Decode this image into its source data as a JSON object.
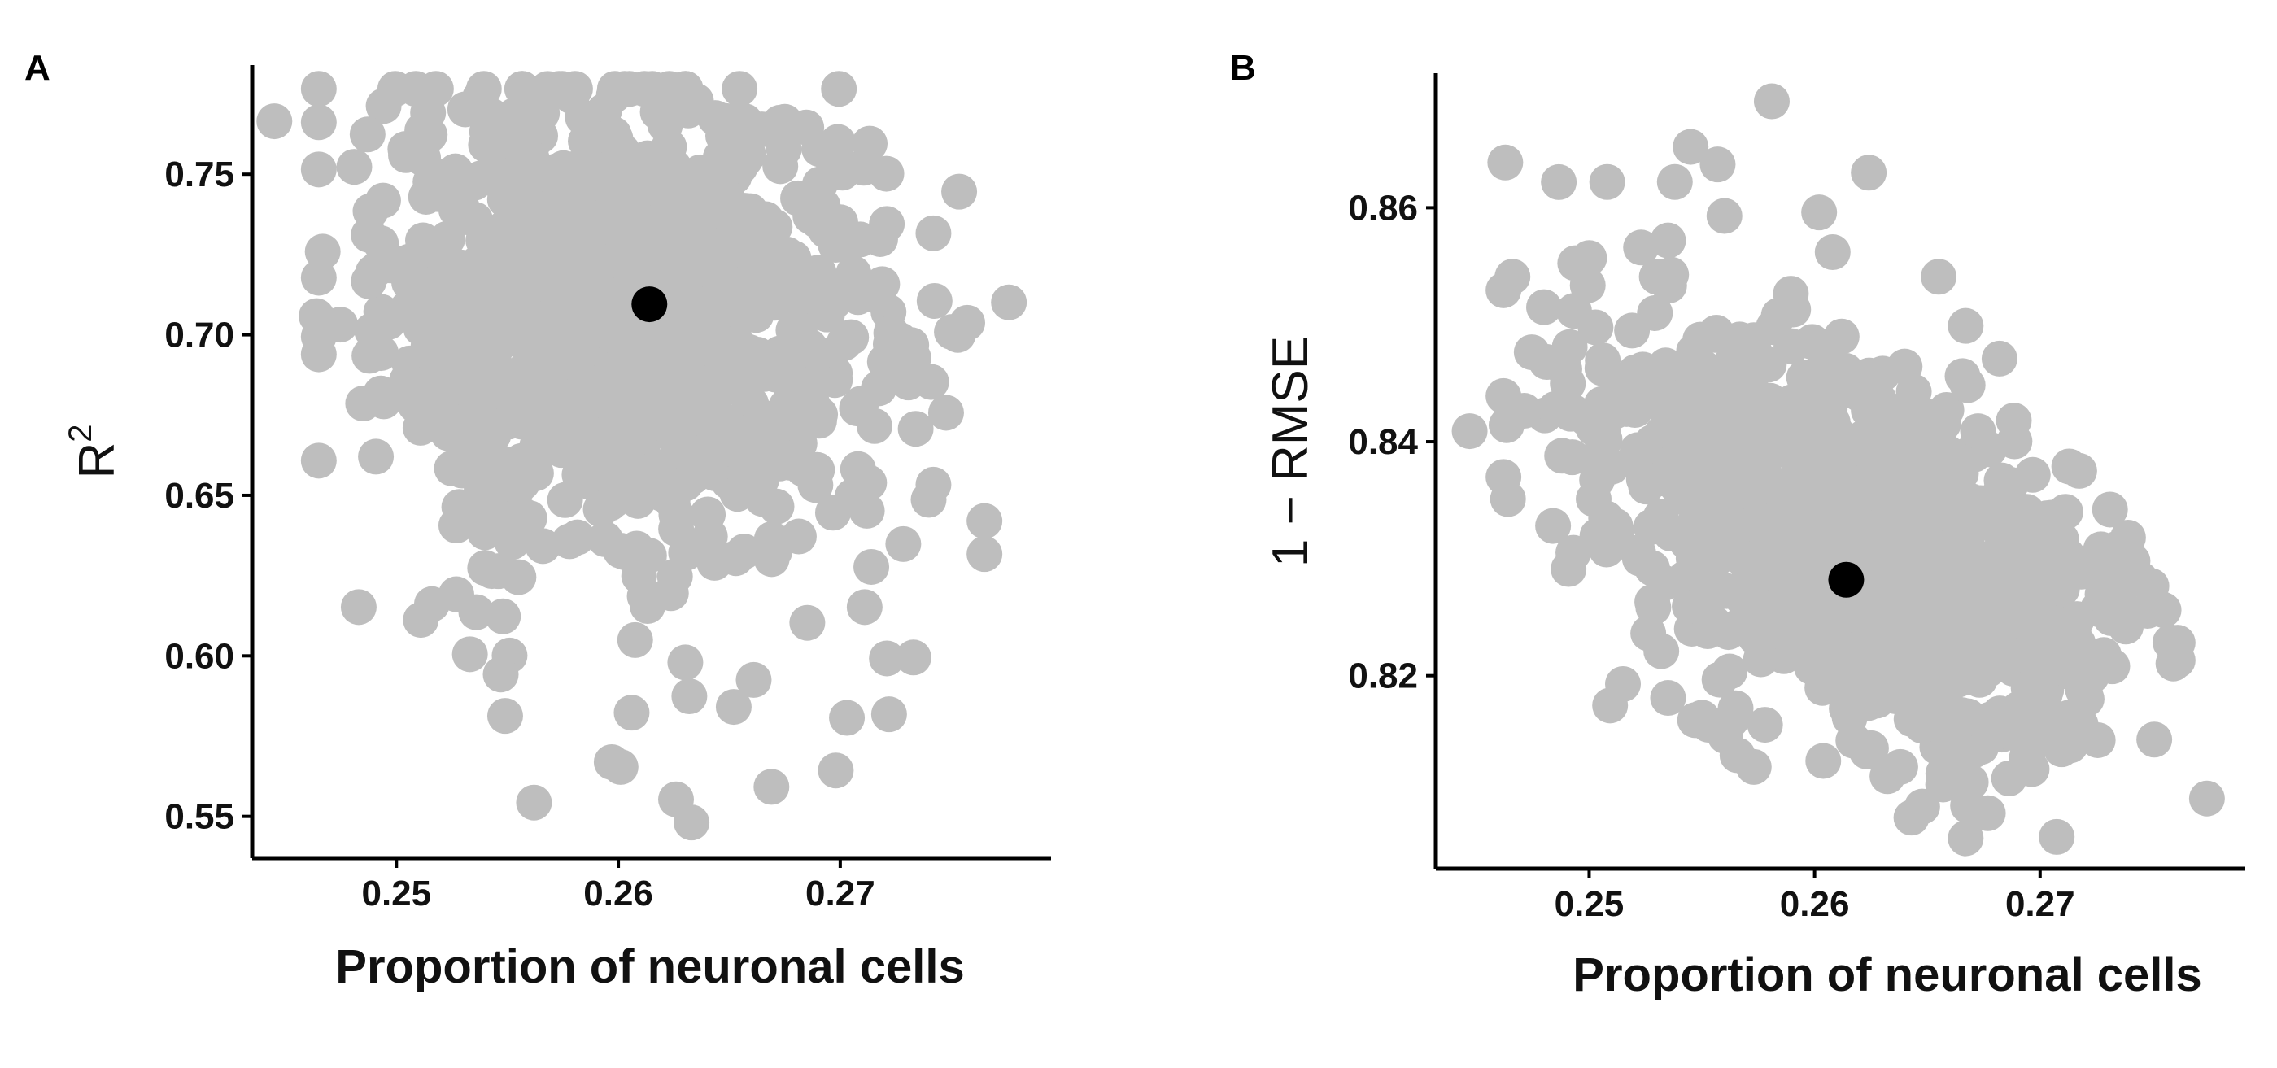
{
  "panels": [
    {
      "letter": "A",
      "xlabel": "Proportion of neuronal cells",
      "ylabel_base": "R",
      "ylabel_sup": "2",
      "x_ticks": [
        0.25,
        0.26,
        0.27
      ],
      "x_tick_labels": [
        "0.25",
        "0.26",
        "0.27"
      ],
      "y_ticks": [
        0.55,
        0.6,
        0.65,
        0.7,
        0.75
      ],
      "y_tick_labels": [
        "0.55",
        "0.60",
        "0.65",
        "0.70",
        "0.75"
      ]
    },
    {
      "letter": "B",
      "xlabel": "Proportion of neuronal cells",
      "ylabel": "1 − RMSE",
      "x_ticks": [
        0.25,
        0.26,
        0.27
      ],
      "x_tick_labels": [
        "0.25",
        "0.26",
        "0.27"
      ],
      "y_ticks": [
        0.82,
        0.84,
        0.86
      ],
      "y_tick_labels": [
        "0.82",
        "0.84",
        "0.86"
      ]
    }
  ],
  "colors": {
    "points": "#bebebe",
    "highlight": "#000000",
    "axis": "#000000"
  },
  "chart_data": [
    {
      "type": "scatter",
      "title": "",
      "xlabel": "Proportion of neuronal cells",
      "ylabel": "R^2",
      "xlim": [
        0.2435,
        0.2795
      ],
      "ylim": [
        0.537,
        0.784
      ],
      "grid": false,
      "highlight_point": {
        "x": 0.2614,
        "y": 0.7095
      },
      "points": [
        [
          0.2445,
          0.7665
        ],
        [
          0.2465,
          0.7662
        ],
        [
          0.2481,
          0.7523
        ],
        [
          0.2487,
          0.7624
        ],
        [
          0.2494,
          0.7418
        ],
        [
          0.2493,
          0.7285
        ],
        [
          0.2497,
          0.7231
        ],
        [
          0.2505,
          0.7082
        ],
        [
          0.2493,
          0.6943
        ],
        [
          0.2489,
          0.7013
        ],
        [
          0.2464,
          0.7058
        ],
        [
          0.2485,
          0.6786
        ],
        [
          0.2483,
          0.6152
        ],
        [
          0.2511,
          0.6112
        ],
        [
          0.2516,
          0.6161
        ],
        [
          0.2527,
          0.6192
        ],
        [
          0.2536,
          0.6136
        ],
        [
          0.2548,
          0.6123
        ],
        [
          0.2551,
          0.6001
        ],
        [
          0.2547,
          0.5942
        ],
        [
          0.2549,
          0.5813
        ],
        [
          0.2562,
          0.5543
        ],
        [
          0.2512,
          0.7551
        ],
        [
          0.2515,
          0.7623
        ],
        [
          0.2531,
          0.7702
        ],
        [
          0.2538,
          0.7712
        ],
        [
          0.2553,
          0.7682
        ],
        [
          0.2519,
          0.7438
        ],
        [
          0.2527,
          0.7389
        ],
        [
          0.2523,
          0.7299
        ],
        [
          0.2513,
          0.7155
        ],
        [
          0.2518,
          0.6932
        ],
        [
          0.2513,
          0.6845
        ],
        [
          0.2525,
          0.6706
        ],
        [
          0.2525,
          0.6584
        ],
        [
          0.2527,
          0.6406
        ],
        [
          0.2541,
          0.6452
        ],
        [
          0.2543,
          0.6561
        ],
        [
          0.2543,
          0.6264
        ],
        [
          0.2555,
          0.6245
        ],
        [
          0.2566,
          0.6342
        ],
        [
          0.2578,
          0.6357
        ],
        [
          0.2597,
          0.5669
        ],
        [
          0.2601,
          0.5654
        ],
        [
          0.2606,
          0.5823
        ],
        [
          0.2626,
          0.5553
        ],
        [
          0.2633,
          0.5481
        ],
        [
          0.2632,
          0.5874
        ],
        [
          0.2652,
          0.5841
        ],
        [
          0.2661,
          0.5925
        ],
        [
          0.2669,
          0.5592
        ],
        [
          0.2698,
          0.5643
        ],
        [
          0.2703,
          0.5807
        ],
        [
          0.2722,
          0.5818
        ],
        [
          0.2721,
          0.5992
        ],
        [
          0.2733,
          0.5995
        ],
        [
          0.2711,
          0.6152
        ],
        [
          0.2714,
          0.6277
        ],
        [
          0.2712,
          0.6452
        ],
        [
          0.2713,
          0.6539
        ],
        [
          0.2742,
          0.6533
        ],
        [
          0.2734,
          0.6707
        ],
        [
          0.2741,
          0.6853
        ],
        [
          0.2733,
          0.6928
        ],
        [
          0.2727,
          0.6983
        ],
        [
          0.2723,
          0.7005
        ],
        [
          0.2732,
          0.6968
        ],
        [
          0.2742,
          0.7316
        ],
        [
          0.2721,
          0.7345
        ],
        [
          0.2718,
          0.7298
        ],
        [
          0.2706,
          0.7191
        ],
        [
          0.2703,
          0.7285
        ],
        [
          0.2701,
          0.7505
        ],
        [
          0.2776,
          0.7101
        ],
        [
          0.2579,
          0.7743
        ],
        [
          0.2598,
          0.7746
        ],
        [
          0.2635,
          0.7728
        ],
        [
          0.2657,
          0.7665
        ],
        [
          0.2673,
          0.7525
        ],
        [
          0.2681,
          0.7425
        ],
        [
          0.2614,
          0.7095
        ]
      ],
      "cloud_fill": {
        "note": "dense overlapping cluster of points",
        "center": [
          0.2605,
          0.705
        ],
        "x_spread": 0.0055,
        "y_spread": 0.035,
        "count": 900
      }
    },
    {
      "type": "scatter",
      "title": "",
      "xlabel": "Proportion of neuronal cells",
      "ylabel": "1 − RMSE",
      "xlim": [
        0.2432,
        0.2791
      ],
      "ylim": [
        0.8035,
        0.8715
      ],
      "grid": false,
      "highlight_point": {
        "x": 0.2614,
        "y": 0.8282
      },
      "points": [
        [
          0.2447,
          0.8409
        ],
        [
          0.2464,
          0.8351
        ],
        [
          0.2466,
          0.8541
        ],
        [
          0.248,
          0.8515
        ],
        [
          0.2485,
          0.8428
        ],
        [
          0.2488,
          0.8388
        ],
        [
          0.2489,
          0.8462
        ],
        [
          0.2493,
          0.8305
        ],
        [
          0.2484,
          0.8328
        ],
        [
          0.25,
          0.8557
        ],
        [
          0.2508,
          0.8622
        ],
        [
          0.2502,
          0.8351
        ],
        [
          0.2505,
          0.8428
        ],
        [
          0.2513,
          0.8445
        ],
        [
          0.2519,
          0.8495
        ],
        [
          0.2523,
          0.8566
        ],
        [
          0.253,
          0.8541
        ],
        [
          0.2538,
          0.8622
        ],
        [
          0.2535,
          0.8572
        ],
        [
          0.2545,
          0.8652
        ],
        [
          0.2557,
          0.8637
        ],
        [
          0.256,
          0.8593
        ],
        [
          0.2581,
          0.8691
        ],
        [
          0.2602,
          0.8596
        ],
        [
          0.2608,
          0.8562
        ],
        [
          0.2624,
          0.863
        ],
        [
          0.2655,
          0.8541
        ],
        [
          0.2667,
          0.8499
        ],
        [
          0.2682,
          0.8471
        ],
        [
          0.2528,
          0.8263
        ],
        [
          0.2532,
          0.8221
        ],
        [
          0.2535,
          0.8181
        ],
        [
          0.2547,
          0.8162
        ],
        [
          0.2553,
          0.8158
        ],
        [
          0.2563,
          0.8162
        ],
        [
          0.2573,
          0.8122
        ],
        [
          0.2578,
          0.8158
        ],
        [
          0.2625,
          0.8138
        ],
        [
          0.2638,
          0.8122
        ],
        [
          0.2657,
          0.8107
        ],
        [
          0.2666,
          0.8135
        ],
        [
          0.2667,
          0.8061
        ],
        [
          0.2686,
          0.8152
        ],
        [
          0.2694,
          0.8129
        ],
        [
          0.2703,
          0.8149
        ],
        [
          0.2718,
          0.8158
        ],
        [
          0.2719,
          0.8188
        ],
        [
          0.2732,
          0.8208
        ],
        [
          0.2738,
          0.8242
        ],
        [
          0.2737,
          0.8252
        ],
        [
          0.2741,
          0.8298
        ],
        [
          0.2739,
          0.8318
        ],
        [
          0.2731,
          0.8342
        ],
        [
          0.2727,
          0.8308
        ],
        [
          0.2705,
          0.8335
        ],
        [
          0.2702,
          0.8315
        ],
        [
          0.2774,
          0.8095
        ],
        [
          0.2614,
          0.8282
        ]
      ],
      "cloud_fill": {
        "note": "dense overlapping cluster of points",
        "center": [
          0.2615,
          0.831
        ],
        "x_spread": 0.0058,
        "y_spread": 0.0075,
        "count": 900
      }
    }
  ]
}
